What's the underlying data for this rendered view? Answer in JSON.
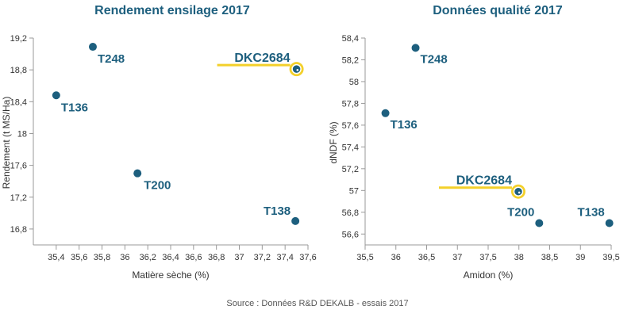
{
  "chart_data": [
    {
      "type": "scatter",
      "title": "Rendement ensilage 2017",
      "xlabel": "Matière sèche (%)",
      "ylabel": "Rendement (t MS/Ha)",
      "xlim": [
        35.2,
        37.6
      ],
      "ylim": [
        16.6,
        19.2
      ],
      "xticks": [
        "35,4",
        "35,6",
        "35,8",
        "36",
        "36,2",
        "36,4",
        "36,6",
        "36,8",
        "37",
        "37,2",
        "37,4",
        "37,6"
      ],
      "yticks": [
        "16,8",
        "17,2",
        "17,6",
        "18",
        "18,4",
        "18,8",
        "19,2"
      ],
      "points": [
        {
          "label": "T248",
          "x": 35.72,
          "y": 19.09
        },
        {
          "label": "T136",
          "x": 35.4,
          "y": 18.48
        },
        {
          "label": "T200",
          "x": 36.11,
          "y": 17.5
        },
        {
          "label": "T138",
          "x": 37.49,
          "y": 16.9
        },
        {
          "label": "DKC2684",
          "x": 37.5,
          "y": 18.81,
          "highlight": true
        }
      ]
    },
    {
      "type": "scatter",
      "title": "Données qualité 2017",
      "xlabel": "Amidon (%)",
      "ylabel": "dNDF (%)",
      "xlim": [
        35.5,
        39.5
      ],
      "ylim": [
        56.5,
        58.4
      ],
      "xticks": [
        "35,5",
        "36",
        "36,5",
        "37",
        "37,5",
        "38",
        "38,5",
        "39",
        "39,5"
      ],
      "yticks": [
        "56,6",
        "56,8",
        "57",
        "57,2",
        "57,4",
        "57,6",
        "57,8",
        "58",
        "58,2",
        "58,4"
      ],
      "points": [
        {
          "label": "T248",
          "x": 36.32,
          "y": 58.31
        },
        {
          "label": "T136",
          "x": 35.83,
          "y": 57.71
        },
        {
          "label": "DKC2684",
          "x": 37.99,
          "y": 56.99,
          "highlight": true
        },
        {
          "label": "T200",
          "x": 38.33,
          "y": 56.7
        },
        {
          "label": "T138",
          "x": 39.47,
          "y": 56.7
        }
      ]
    }
  ],
  "source": "Source : Données R&D DEKALB - essais 2017",
  "colors": {
    "point": "#1d5f7e",
    "highlight_ring": "#f3d02a",
    "axis": "#999999",
    "underline": "#f3d02a"
  }
}
